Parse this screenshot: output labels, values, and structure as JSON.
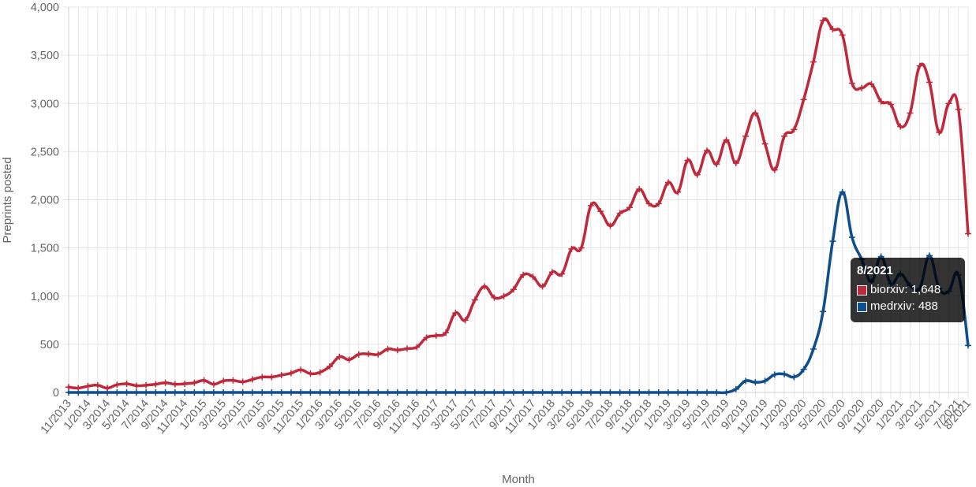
{
  "chart_data": {
    "type": "line",
    "xlabel": "Month",
    "ylabel": "Preprints posted",
    "ylim": [
      0,
      4000
    ],
    "yticks": [
      0,
      500,
      1000,
      1500,
      2000,
      2500,
      3000,
      3500,
      4000
    ],
    "ytick_labels": [
      "0",
      "500",
      "1,000",
      "1,500",
      "2,000",
      "2,500",
      "3,000",
      "3,500",
      "4,000"
    ],
    "grid": true,
    "categories": [
      "11/2013",
      "12/2013",
      "1/2014",
      "2/2014",
      "3/2014",
      "4/2014",
      "5/2014",
      "6/2014",
      "7/2014",
      "8/2014",
      "9/2014",
      "10/2014",
      "11/2014",
      "12/2014",
      "1/2015",
      "2/2015",
      "3/2015",
      "4/2015",
      "5/2015",
      "6/2015",
      "7/2015",
      "8/2015",
      "9/2015",
      "10/2015",
      "11/2015",
      "12/2015",
      "1/2016",
      "2/2016",
      "3/2016",
      "4/2016",
      "5/2016",
      "6/2016",
      "7/2016",
      "8/2016",
      "9/2016",
      "10/2016",
      "11/2016",
      "12/2016",
      "1/2017",
      "2/2017",
      "3/2017",
      "4/2017",
      "5/2017",
      "6/2017",
      "7/2017",
      "8/2017",
      "9/2017",
      "10/2017",
      "11/2017",
      "12/2017",
      "1/2018",
      "2/2018",
      "3/2018",
      "4/2018",
      "5/2018",
      "6/2018",
      "7/2018",
      "8/2018",
      "9/2018",
      "10/2018",
      "11/2018",
      "12/2018",
      "1/2019",
      "2/2019",
      "3/2019",
      "4/2019",
      "5/2019",
      "6/2019",
      "7/2019",
      "8/2019",
      "9/2019",
      "10/2019",
      "11/2019",
      "12/2019",
      "1/2020",
      "2/2020",
      "3/2020",
      "4/2020",
      "5/2020",
      "6/2020",
      "7/2020",
      "8/2020",
      "9/2020",
      "10/2020",
      "11/2020",
      "12/2020",
      "1/2021",
      "2/2021",
      "3/2021",
      "4/2021",
      "5/2021",
      "6/2021",
      "7/2021",
      "8/2021"
    ],
    "series": [
      {
        "name": "biorxiv",
        "color": "#c0283b",
        "values": [
          55,
          45,
          65,
          75,
          45,
          80,
          90,
          70,
          75,
          85,
          100,
          85,
          90,
          100,
          125,
          85,
          120,
          125,
          110,
          135,
          160,
          160,
          180,
          200,
          235,
          195,
          210,
          270,
          370,
          340,
          395,
          400,
          395,
          450,
          440,
          455,
          470,
          570,
          590,
          620,
          825,
          750,
          960,
          1100,
          985,
          1000,
          1070,
          1220,
          1200,
          1100,
          1250,
          1230,
          1490,
          1500,
          1940,
          1880,
          1730,
          1860,
          1920,
          2110,
          1960,
          1960,
          2180,
          2080,
          2410,
          2260,
          2510,
          2370,
          2620,
          2380,
          2660,
          2900,
          2580,
          2310,
          2660,
          2730,
          3040,
          3430,
          3860,
          3770,
          3710,
          3210,
          3160,
          3200,
          3020,
          2990,
          2760,
          2900,
          3390,
          3220,
          2700,
          3000,
          2940,
          1648
        ]
      },
      {
        "name": "medrxiv",
        "color": "#0f4e8c",
        "values": [
          0,
          0,
          0,
          0,
          0,
          0,
          0,
          0,
          0,
          0,
          0,
          0,
          0,
          0,
          0,
          0,
          0,
          0,
          0,
          0,
          0,
          0,
          0,
          0,
          0,
          0,
          0,
          0,
          0,
          0,
          0,
          0,
          0,
          0,
          0,
          0,
          0,
          0,
          0,
          0,
          0,
          0,
          0,
          0,
          0,
          0,
          0,
          0,
          0,
          0,
          0,
          0,
          0,
          0,
          0,
          0,
          0,
          0,
          0,
          0,
          0,
          0,
          0,
          0,
          0,
          0,
          0,
          0,
          0,
          35,
          120,
          105,
          120,
          185,
          190,
          160,
          240,
          450,
          840,
          1570,
          2080,
          1610,
          1380,
          1150,
          1410,
          1130,
          1230,
          1110,
          1080,
          1420,
          1080,
          1050,
          1220,
          488
        ]
      }
    ],
    "tooltip": {
      "title": "8/2021",
      "items": [
        {
          "label": "biorxiv: 1,648",
          "color": "#c0283b"
        },
        {
          "label": "medrxiv: 488",
          "color": "#0f4e8c"
        }
      ]
    },
    "grid_color": "#e6e6e6"
  }
}
